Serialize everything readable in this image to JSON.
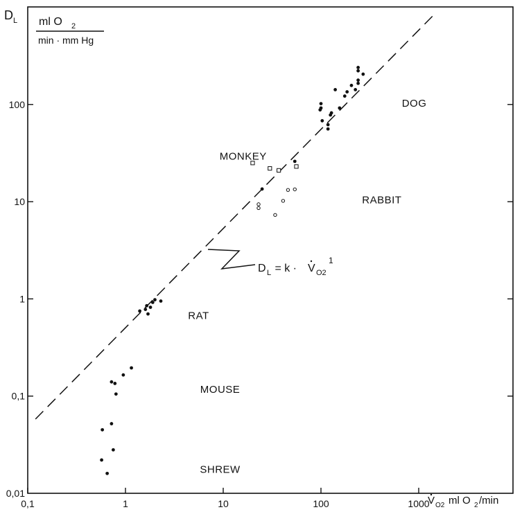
{
  "chart_data": {
    "type": "scatter",
    "x_scale": "log",
    "y_scale": "log",
    "xlim": [
      0.1,
      5000
    ],
    "ylim": [
      0.01,
      1000
    ],
    "grid": false,
    "x_ticks": [
      {
        "value": 0.1,
        "label": "0,1"
      },
      {
        "value": 1,
        "label": "1"
      },
      {
        "value": 10,
        "label": "10"
      },
      {
        "value": 100,
        "label": "100"
      },
      {
        "value": 1000,
        "label": "1000"
      }
    ],
    "y_ticks": [
      {
        "value": 0.01,
        "label": "0,01"
      },
      {
        "value": 0.1,
        "label": "0,1"
      },
      {
        "value": 1,
        "label": "1"
      },
      {
        "value": 10,
        "label": "10"
      },
      {
        "value": 100,
        "label": "100"
      }
    ],
    "y_axis_label": {
      "symbol": "D",
      "subscript": "L",
      "unit_numerator": "ml O",
      "unit_numerator_sub": "2",
      "unit_denominator": "min · mm Hg"
    },
    "x_axis_label": {
      "symbol": "V",
      "subscript": "O2",
      "unit": "ml O",
      "unit_sub": "2",
      "unit_tail": "/min"
    },
    "reference_line": {
      "style": "dashed",
      "points": [
        [
          0.12,
          0.058
        ],
        [
          1500,
          880
        ]
      ],
      "label_main": "D",
      "label_sub": "L",
      "label_eq": " = k · ",
      "label_v": "V",
      "label_vsub": "O2",
      "label_exp": "1"
    },
    "species_labels": [
      {
        "text": "DOG",
        "x": 900,
        "y": 95
      },
      {
        "text": "MONKEY",
        "x": 16,
        "y": 27
      },
      {
        "text": "RABBIT",
        "x": 420,
        "y": 9.6
      },
      {
        "text": "RAT",
        "x": 5.6,
        "y": 0.62
      },
      {
        "text": "MOUSE",
        "x": 9.3,
        "y": 0.108
      },
      {
        "text": "SHREW",
        "x": 9.3,
        "y": 0.0162
      }
    ],
    "series": [
      {
        "marker": "filled-circle",
        "points": [
          [
            0.57,
            0.022
          ],
          [
            0.65,
            0.016
          ],
          [
            0.75,
            0.028
          ],
          [
            0.58,
            0.045
          ],
          [
            0.72,
            0.052
          ],
          [
            0.8,
            0.105
          ],
          [
            0.72,
            0.14
          ],
          [
            0.78,
            0.135
          ],
          [
            0.95,
            0.165
          ],
          [
            1.15,
            0.195
          ],
          [
            1.4,
            0.75
          ],
          [
            1.6,
            0.78
          ],
          [
            1.7,
            0.7
          ],
          [
            1.65,
            0.85
          ],
          [
            1.8,
            0.82
          ],
          [
            1.9,
            0.92
          ],
          [
            2,
            0.98
          ],
          [
            2.3,
            0.95
          ],
          [
            25,
            13.5
          ],
          [
            54,
            26
          ],
          [
            100,
            102
          ],
          [
            100,
            92
          ],
          [
            98,
            88
          ],
          [
            103,
            68
          ],
          [
            118,
            62
          ],
          [
            118,
            56
          ],
          [
            125,
            78
          ],
          [
            128,
            82
          ],
          [
            140,
            142
          ],
          [
            155,
            92
          ],
          [
            175,
            122
          ],
          [
            185,
            135
          ],
          [
            205,
            157
          ],
          [
            225,
            142
          ],
          [
            240,
            240
          ],
          [
            240,
            222
          ],
          [
            240,
            178
          ],
          [
            240,
            165
          ],
          [
            270,
            205
          ]
        ]
      },
      {
        "marker": "open-circle",
        "points": [
          [
            23,
            9.4
          ],
          [
            23,
            8.6
          ],
          [
            34,
            7.3
          ],
          [
            41,
            10.2
          ],
          [
            46,
            13.2
          ],
          [
            54,
            13.4
          ]
        ]
      },
      {
        "marker": "open-square",
        "points": [
          [
            20,
            25
          ],
          [
            30,
            22
          ],
          [
            37,
            21
          ],
          [
            56,
            23
          ]
        ]
      }
    ]
  }
}
